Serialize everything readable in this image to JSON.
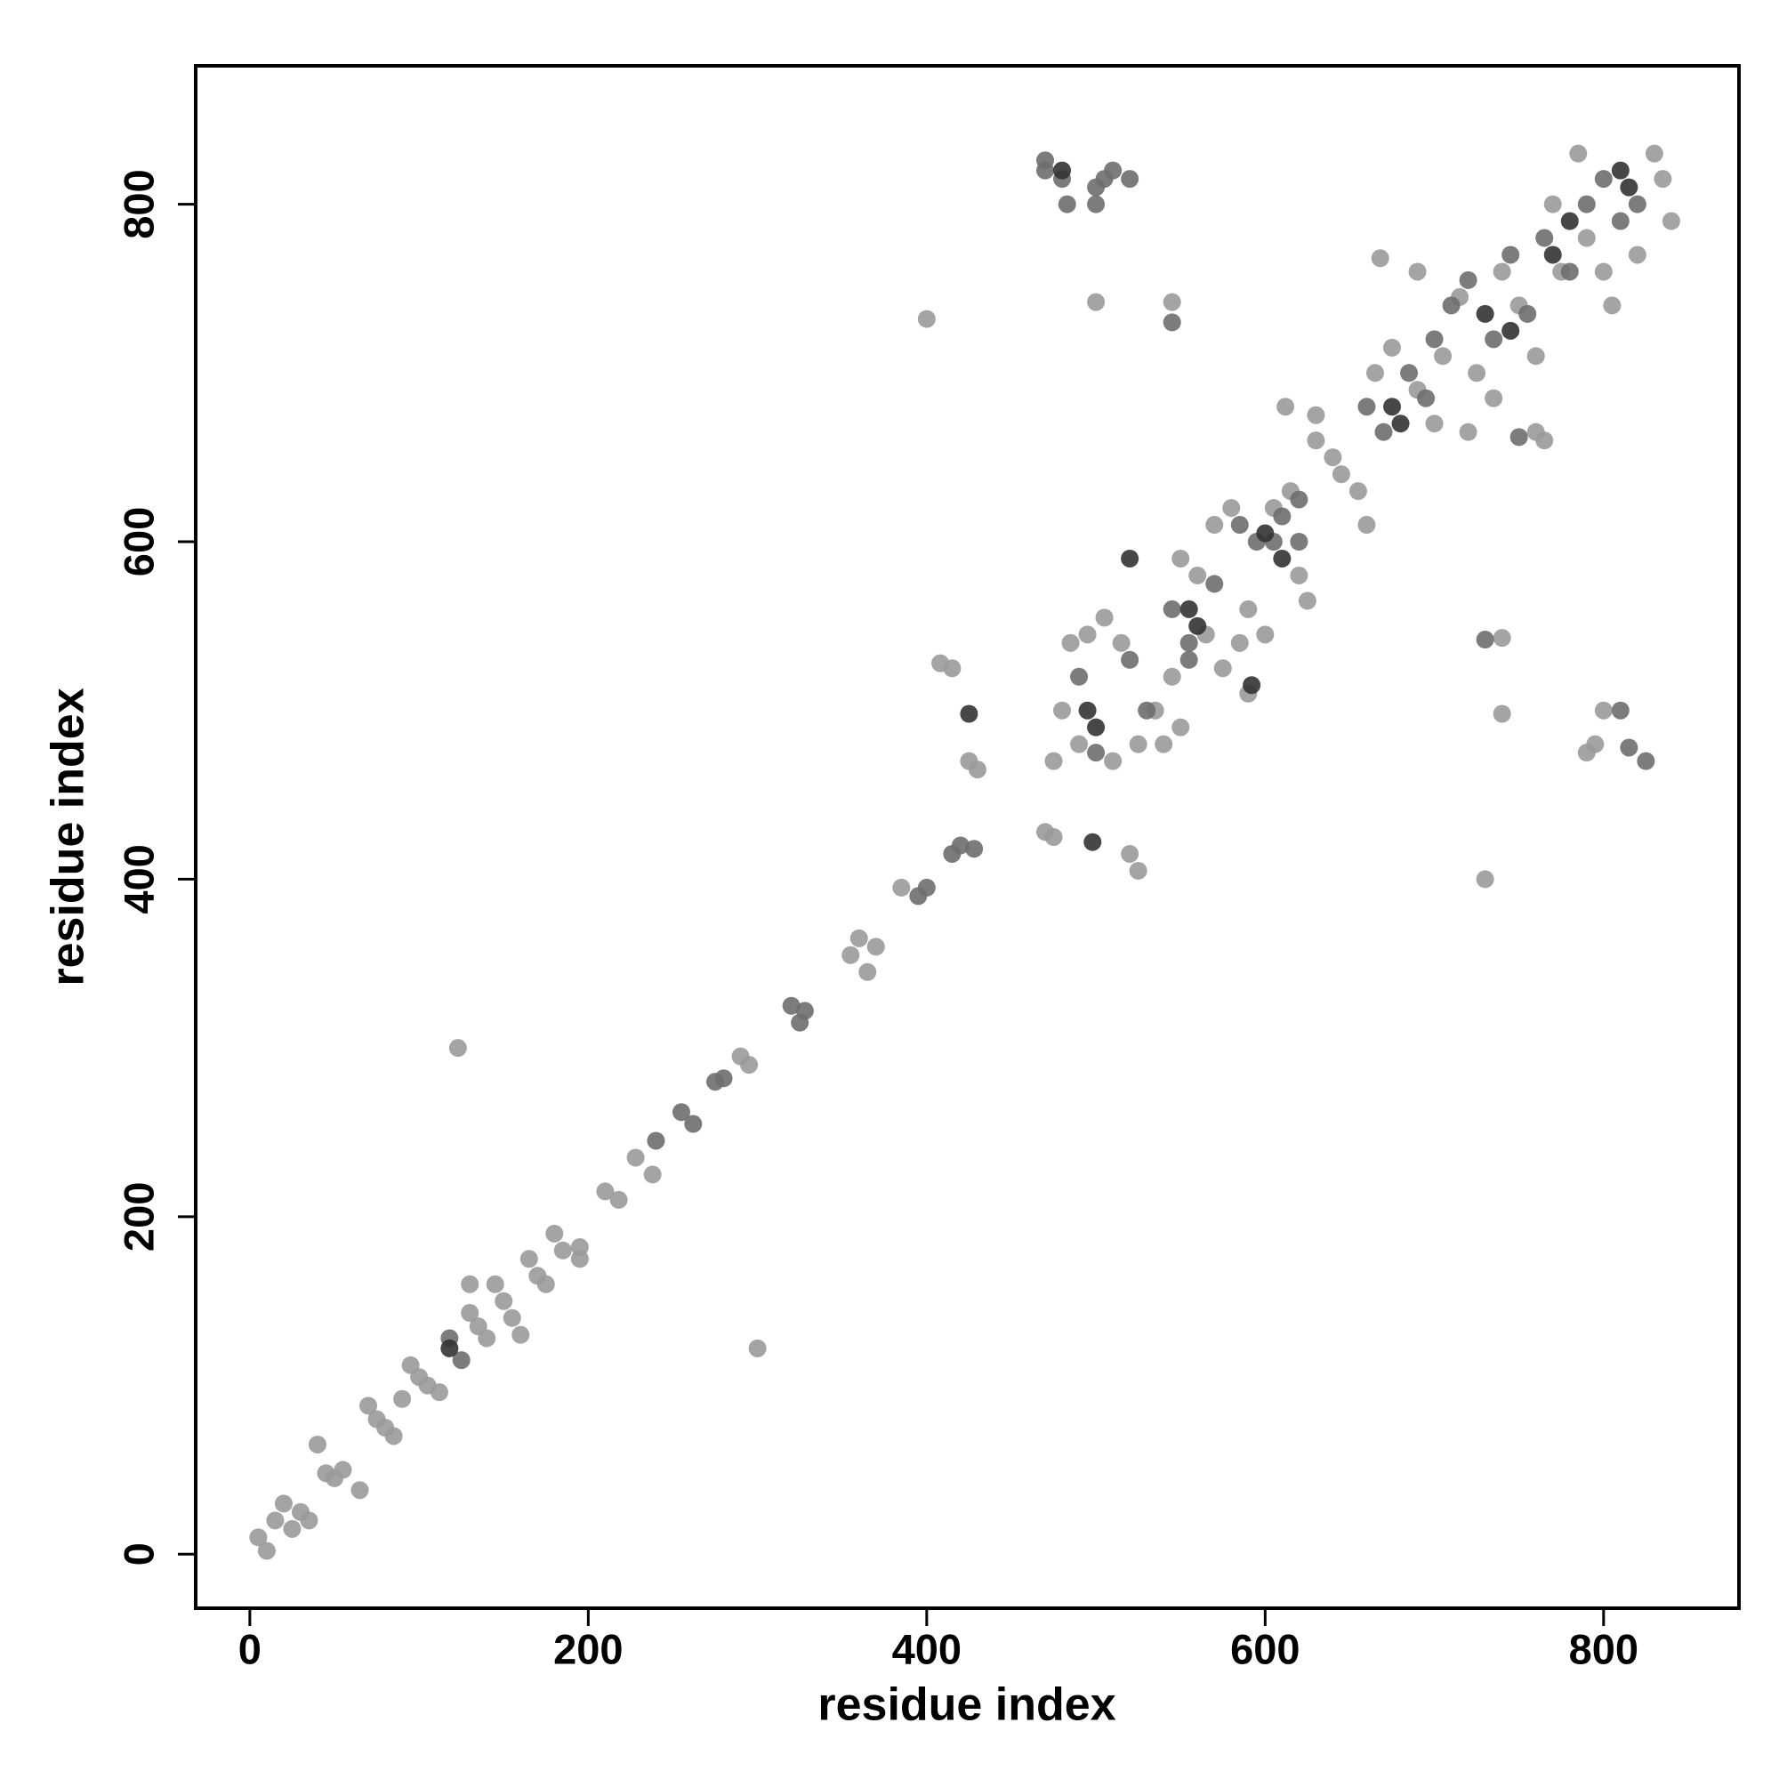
{
  "chart_data": {
    "type": "scatter",
    "xlabel": "residue index",
    "ylabel": "residue index",
    "xlim": [
      -32,
      880
    ],
    "ylim": [
      -32,
      882
    ],
    "xticks": [
      0,
      200,
      400,
      600,
      800
    ],
    "yticks": [
      0,
      200,
      400,
      600,
      800
    ],
    "series": [
      {
        "color": "#9a9a9a",
        "x": [
          5,
          10,
          15,
          20,
          25,
          30,
          35,
          40,
          45,
          50,
          55,
          65,
          70,
          75,
          80,
          85,
          90,
          95,
          100,
          105,
          112,
          130,
          130,
          135,
          140,
          145,
          150,
          155,
          160,
          165,
          170,
          175,
          180,
          185,
          195,
          195,
          210,
          218,
          228,
          238,
          123,
          300,
          290,
          295,
          355,
          360,
          370,
          365,
          385,
          400,
          408,
          415,
          425,
          430,
          470,
          475,
          500,
          545,
          520,
          525,
          740,
          740,
          730,
          760,
          765,
          690,
          668,
          480,
          490,
          485,
          495,
          505,
          515,
          510,
          525,
          535,
          545,
          550,
          560,
          565,
          575,
          570,
          580,
          590,
          600,
          605,
          615,
          620,
          625,
          630,
          640,
          645,
          655,
          660,
          665,
          675,
          690,
          700,
          705,
          715,
          720,
          725,
          735,
          740,
          750,
          760,
          770,
          775,
          785,
          790,
          800,
          805,
          820,
          830,
          835,
          840,
          795,
          800,
          790,
          612,
          630,
          550,
          540,
          590,
          585,
          475
        ],
        "y": [
          10,
          2,
          20,
          30,
          15,
          25,
          20,
          65,
          48,
          45,
          50,
          38,
          88,
          80,
          75,
          70,
          92,
          112,
          105,
          100,
          96,
          160,
          143,
          135,
          128,
          160,
          150,
          140,
          130,
          175,
          165,
          160,
          190,
          180,
          182,
          175,
          215,
          210,
          235,
          225,
          300,
          122,
          295,
          290,
          355,
          365,
          360,
          345,
          395,
          732,
          528,
          525,
          470,
          465,
          428,
          425,
          742,
          742,
          415,
          405,
          543,
          498,
          400,
          665,
          660,
          760,
          768,
          500,
          480,
          540,
          545,
          555,
          540,
          470,
          480,
          500,
          520,
          590,
          580,
          545,
          525,
          610,
          620,
          560,
          545,
          620,
          630,
          580,
          565,
          660,
          650,
          640,
          630,
          610,
          700,
          715,
          690,
          670,
          710,
          745,
          665,
          700,
          685,
          760,
          740,
          710,
          800,
          760,
          830,
          780,
          760,
          740,
          770,
          830,
          815,
          790,
          480,
          500,
          475,
          680,
          675,
          490,
          480,
          510,
          540,
          470
        ]
      },
      {
        "color": "#6e6e6e",
        "x": [
          118,
          125,
          255,
          262,
          240,
          320,
          328,
          325,
          280,
          275,
          395,
          400,
          415,
          420,
          428,
          470,
          480,
          500,
          510,
          520,
          483,
          545,
          730,
          810,
          815,
          825,
          750,
          490,
          500,
          520,
          530,
          545,
          555,
          570,
          585,
          595,
          610,
          620,
          660,
          670,
          685,
          695,
          710,
          720,
          735,
          745,
          755,
          765,
          780,
          790,
          800,
          810,
          820,
          500,
          470,
          505,
          555,
          605,
          620,
          700
        ],
        "y": [
          128,
          115,
          262,
          255,
          245,
          325,
          322,
          315,
          282,
          280,
          390,
          395,
          415,
          420,
          418,
          826,
          815,
          810,
          820,
          815,
          800,
          730,
          542,
          500,
          478,
          470,
          662,
          520,
          475,
          530,
          500,
          560,
          540,
          575,
          610,
          600,
          615,
          625,
          680,
          665,
          700,
          685,
          740,
          755,
          720,
          770,
          735,
          780,
          760,
          800,
          815,
          790,
          800,
          800,
          820,
          815,
          530,
          600,
          600,
          720
        ]
      },
      {
        "color": "#333333",
        "x": [
          118,
          480,
          495,
          500,
          555,
          560,
          600,
          610,
          675,
          680,
          730,
          745,
          770,
          780,
          810,
          815,
          498,
          592,
          520,
          425
        ],
        "y": [
          122,
          820,
          500,
          490,
          560,
          550,
          605,
          590,
          680,
          670,
          735,
          725,
          770,
          790,
          820,
          810,
          422,
          515,
          590,
          498
        ]
      }
    ]
  }
}
